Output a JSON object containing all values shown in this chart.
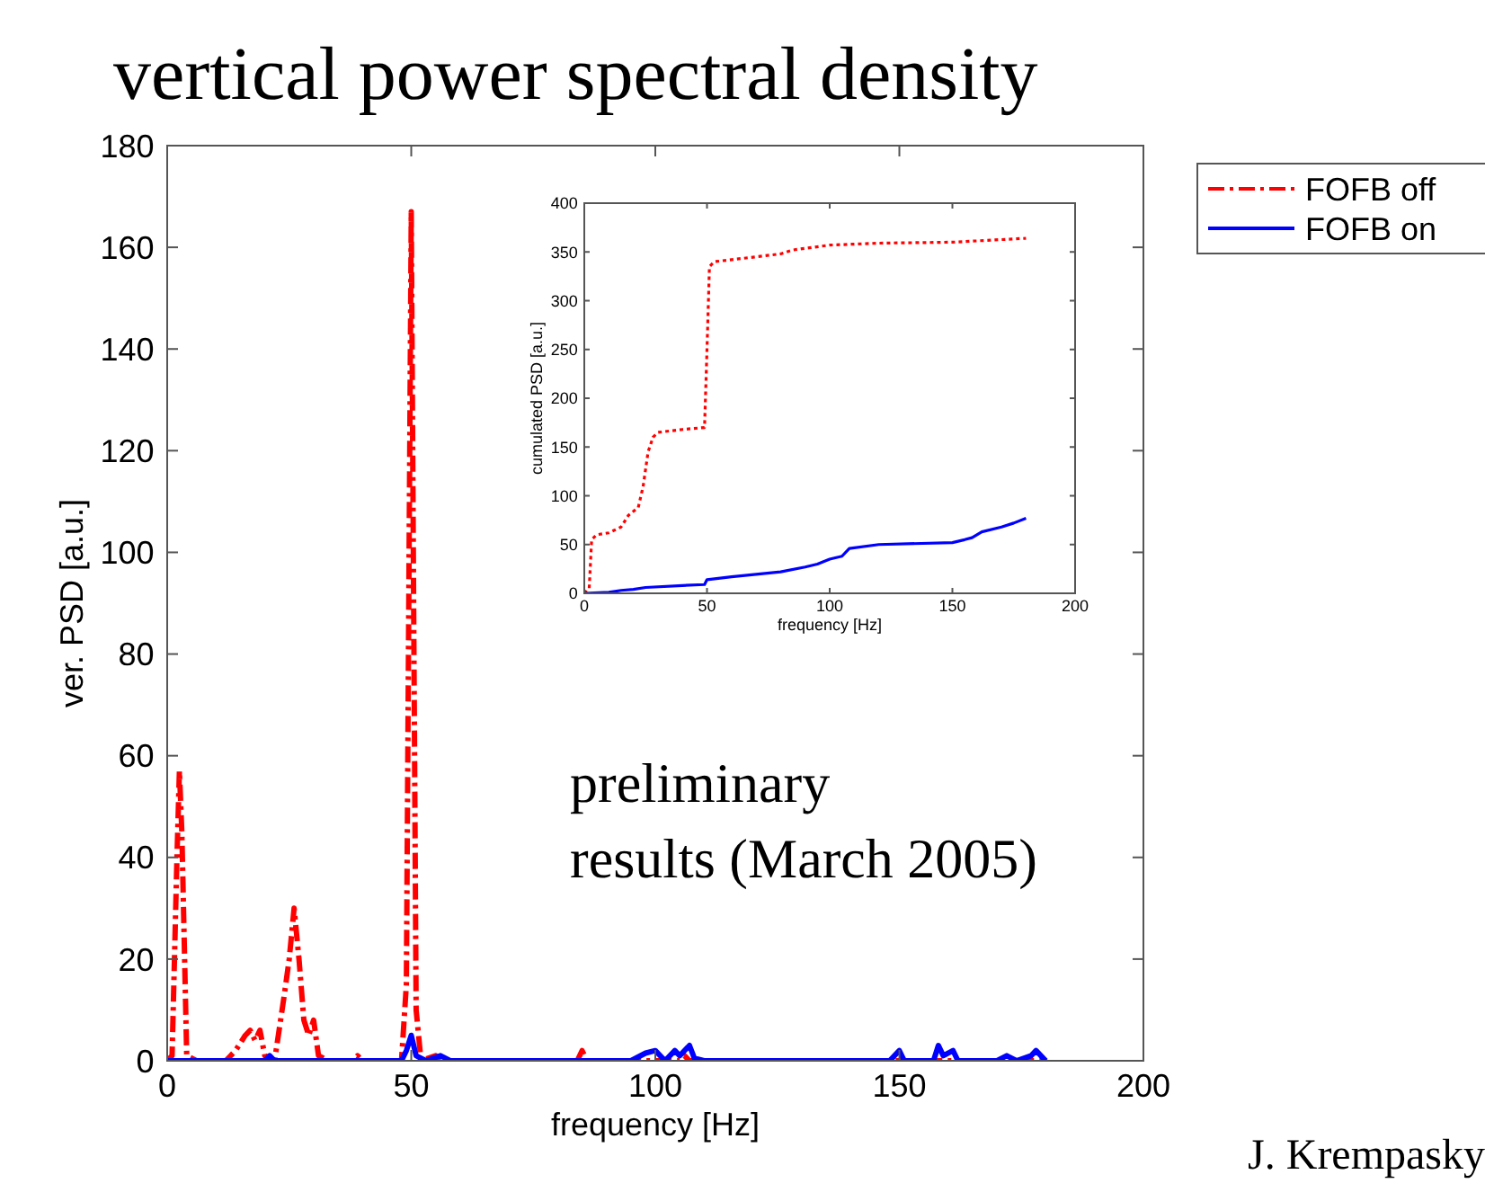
{
  "chart_data": [
    {
      "type": "line",
      "title": "vertical power spectral density",
      "xlabel": "frequency [Hz]",
      "ylabel": "ver. PSD [a.u.]",
      "xlim": [
        0,
        200
      ],
      "xticks": [
        0,
        50,
        100,
        150,
        200
      ],
      "ylim": [
        0,
        180
      ],
      "yticks": [
        0,
        20,
        40,
        60,
        80,
        100,
        120,
        140,
        160,
        180
      ],
      "legend": "top right",
      "grid": false,
      "marker": "none",
      "annotations": [
        "preliminary results (March 2005)",
        "J. Krempasky"
      ],
      "series": [
        {
          "name": "FOFB off",
          "color": "#ff0000",
          "line_style": "dashdot",
          "x": [
            0,
            1,
            2,
            2.5,
            3,
            4,
            6,
            12,
            14,
            16,
            17,
            18,
            19,
            20,
            22,
            24,
            25,
            26,
            27,
            28,
            29,
            30,
            31,
            33,
            38,
            39,
            40,
            48,
            49,
            50,
            51,
            52,
            55,
            56,
            84,
            85,
            86,
            105,
            106,
            107,
            180
          ],
          "values": [
            0,
            1,
            40,
            57,
            45,
            1,
            0,
            0,
            2,
            5,
            6,
            4,
            6,
            1,
            0,
            13,
            20,
            30,
            20,
            8,
            5,
            8,
            1,
            0,
            0,
            1,
            0,
            0,
            15,
            167,
            10,
            0,
            1,
            0,
            0,
            2,
            0,
            0,
            1,
            0,
            0
          ]
        },
        {
          "name": "FOFB on",
          "color": "#0000ff",
          "line_style": "solid",
          "x": [
            0,
            20,
            21,
            22,
            48,
            49,
            50,
            51,
            53,
            56,
            58,
            95,
            98,
            100,
            102,
            104,
            105,
            107,
            108,
            110,
            148,
            150,
            151,
            157,
            158,
            159,
            161,
            162,
            170,
            172,
            174,
            177,
            178,
            179,
            180
          ],
          "values": [
            0,
            0,
            1,
            0,
            0,
            2,
            5,
            1,
            0,
            1,
            0,
            0,
            1.5,
            2,
            0,
            2,
            1,
            3,
            0.5,
            0,
            0,
            2,
            0,
            0,
            3,
            1,
            2,
            0,
            0,
            1,
            0,
            1,
            2,
            1,
            0
          ]
        }
      ]
    },
    {
      "type": "line",
      "xlabel": "frequency [Hz]",
      "ylabel": "cumulated PSD [a.u.]",
      "xlim": [
        0,
        200
      ],
      "xticks": [
        0,
        50,
        100,
        150,
        200
      ],
      "ylim": [
        0,
        400
      ],
      "yticks": [
        0,
        50,
        100,
        150,
        200,
        250,
        300,
        350,
        400
      ],
      "grid": false,
      "marker": "none",
      "series": [
        {
          "color": "#ff0000",
          "line_style": "dotted",
          "x": [
            0,
            2,
            3,
            5,
            10,
            15,
            18,
            22,
            24,
            26,
            28,
            30,
            40,
            49,
            50,
            51,
            53,
            70,
            80,
            85,
            100,
            120,
            150,
            180
          ],
          "values": [
            0,
            5,
            55,
            60,
            62,
            68,
            80,
            88,
            110,
            145,
            160,
            165,
            168,
            170,
            250,
            335,
            340,
            345,
            348,
            352,
            357,
            359,
            360,
            364
          ]
        },
        {
          "color": "#0000ff",
          "line_style": "solid",
          "x": [
            0,
            10,
            15,
            20,
            25,
            40,
            49,
            50,
            60,
            80,
            90,
            95,
            100,
            105,
            108,
            120,
            150,
            155,
            158,
            162,
            170,
            175,
            180
          ],
          "values": [
            0,
            1,
            3,
            4,
            6,
            8,
            9,
            14,
            17,
            22,
            27,
            30,
            35,
            38,
            46,
            50,
            52,
            55,
            57,
            63,
            68,
            72,
            77
          ]
        }
      ]
    }
  ]
}
